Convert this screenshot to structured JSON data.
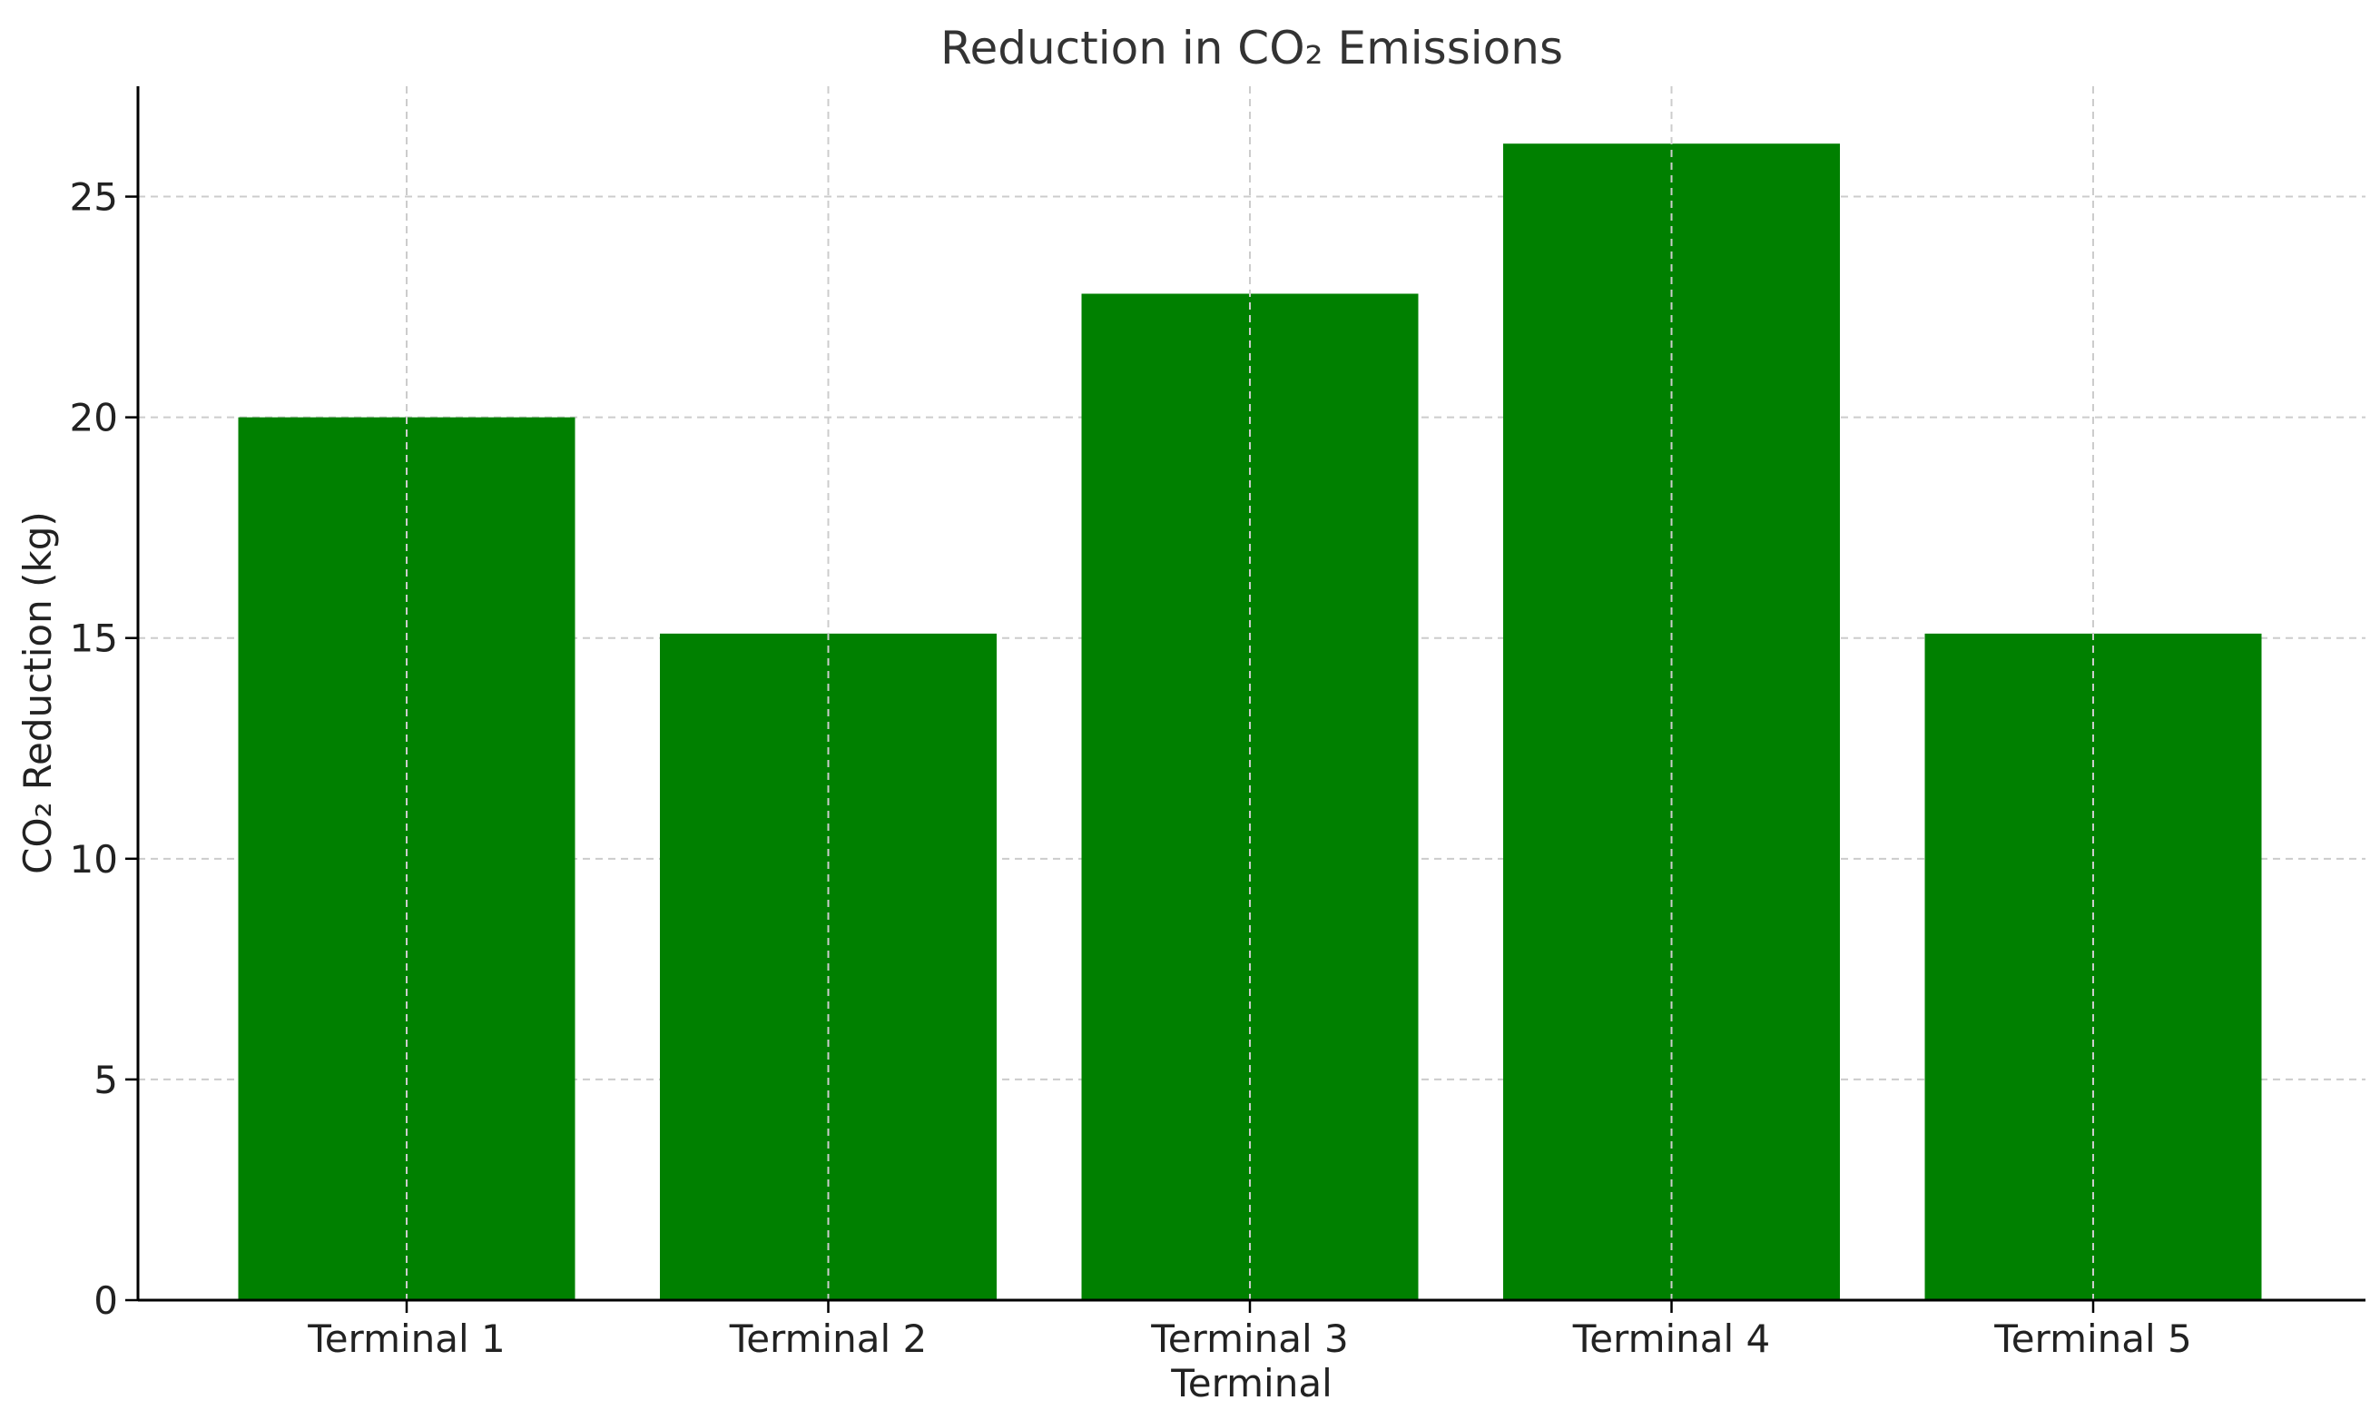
{
  "chart_data": {
    "type": "bar",
    "title": "Reduction in CO₂ Emissions",
    "xlabel": "Terminal",
    "ylabel": "CO₂ Reduction (kg)",
    "categories": [
      "Terminal 1",
      "Terminal 2",
      "Terminal 3",
      "Terminal 4",
      "Terminal 5"
    ],
    "values": [
      20.0,
      15.1,
      22.8,
      26.2,
      15.1
    ],
    "ylim": [
      0,
      27.5
    ],
    "yticks": [
      0,
      5,
      10,
      15,
      20,
      25
    ],
    "grid": true,
    "bar_color": "#008000"
  }
}
